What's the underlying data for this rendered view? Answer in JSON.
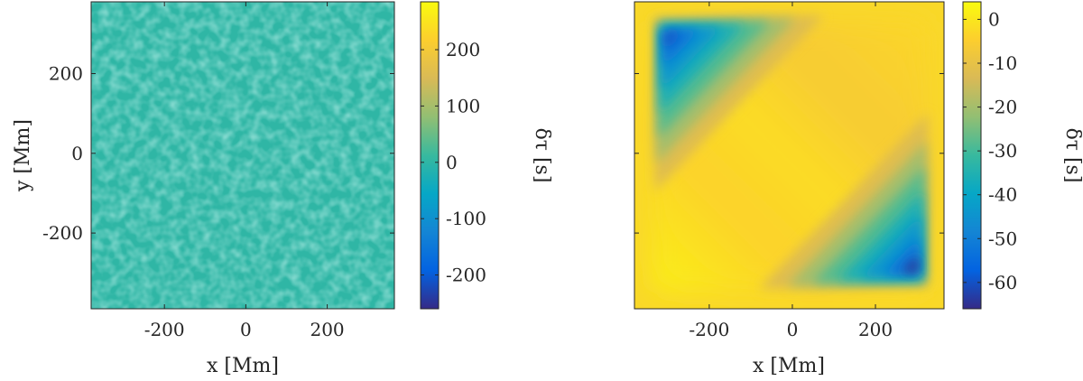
{
  "chart_data": [
    {
      "type": "heatmap",
      "title": "",
      "xlabel": "x [Mm]",
      "ylabel": "y [Mm]",
      "xlim": [
        -380,
        365
      ],
      "ylim": [
        -390,
        380
      ],
      "xticks": [
        -200,
        0,
        200
      ],
      "xtick_labels": [
        "-200",
        "0",
        "200"
      ],
      "yticks": [
        200,
        0,
        -200
      ],
      "ytick_labels": [
        "200",
        "0",
        "-200"
      ],
      "pattern": "noise",
      "colorbar": {
        "label": "δτ [s]",
        "range": [
          -260,
          285
        ],
        "ticks": [
          200,
          100,
          0,
          -100,
          -200
        ],
        "tick_labels": [
          "200",
          "100",
          "0",
          "-100",
          "-200"
        ]
      }
    },
    {
      "type": "heatmap",
      "title": "",
      "xlabel": "x [Mm]",
      "ylabel": "",
      "xlim": [
        -380,
        365
      ],
      "ylim": [
        -390,
        380
      ],
      "xticks": [
        -200,
        0,
        200
      ],
      "xtick_labels": [
        "-200",
        "0",
        "200"
      ],
      "yticks": [],
      "ytick_labels": [],
      "pattern": "diagonal-wells",
      "wells": [
        {
          "x": -305,
          "y": 300,
          "value": -60
        },
        {
          "x": 300,
          "y": -295,
          "value": -65
        }
      ],
      "colorbar": {
        "label": "δτ [s]",
        "range": [
          -66,
          4
        ],
        "ticks": [
          0,
          -10,
          -20,
          -30,
          -40,
          -50,
          -60
        ],
        "tick_labels": [
          "0",
          "-10",
          "-20",
          "-30",
          "-40",
          "-50",
          "-60"
        ]
      }
    }
  ],
  "colormap": [
    "#352a87",
    "#0363e1",
    "#1485d4",
    "#06a7c6",
    "#38b99e",
    "#92bf73",
    "#d9ba56",
    "#fcce2e",
    "#f9fb0e"
  ]
}
